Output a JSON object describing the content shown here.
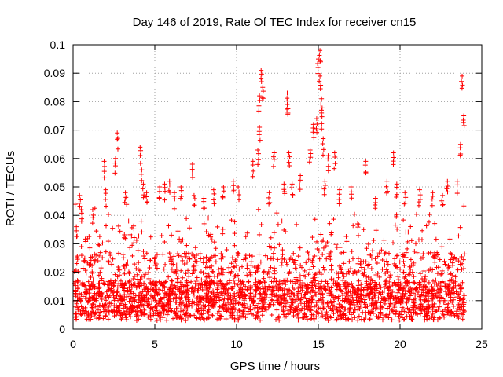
{
  "chart_data": {
    "type": "scatter",
    "title": "Day 146 of 2019, Rate Of TEC Index for receiver cn15",
    "xlabel": "GPS time / hours",
    "ylabel": "ROTI / TECUs",
    "xlim": [
      0,
      25
    ],
    "ylim": [
      0,
      0.1
    ],
    "xticks": [
      0,
      5,
      10,
      15,
      20,
      25
    ],
    "xtick_labels": [
      "0",
      "5",
      "10",
      "15",
      "20",
      "25"
    ],
    "yticks": [
      0,
      0.01,
      0.02,
      0.03,
      0.04,
      0.05,
      0.06,
      0.07,
      0.08,
      0.09,
      0.1
    ],
    "ytick_labels": [
      "0",
      "0.01",
      "0.02",
      "0.03",
      "0.04",
      "0.05",
      "0.06",
      "0.07",
      "0.08",
      "0.09",
      "0.1"
    ],
    "grid": true,
    "marker": "+",
    "series_color": "#ff0000",
    "series": [
      {
        "name": "ROTI",
        "x": [
          0.2,
          0.4,
          0.5,
          1.2,
          1.9,
          2.0,
          2.6,
          2.7,
          3.2,
          4.1,
          4.2,
          4.3,
          4.5,
          5.3,
          5.6,
          5.9,
          6.2,
          6.6,
          7.3,
          7.4,
          8.0,
          8.6,
          9.2,
          9.8,
          10.1,
          11.0,
          11.3,
          11.4,
          11.4,
          11.5,
          11.6,
          12.0,
          12.3,
          12.9,
          13.1,
          13.1,
          13.2,
          13.4,
          13.9,
          14.5,
          14.7,
          14.9,
          15.0,
          15.1,
          15.1,
          15.2,
          15.2,
          15.3,
          15.4,
          15.6,
          16.0,
          16.3,
          17.0,
          17.9,
          18.5,
          19.2,
          19.6,
          19.8,
          20.3,
          21.2,
          22.0,
          22.6,
          22.9,
          23.5,
          23.7,
          23.8,
          23.9
        ],
        "y": [
          0.036,
          0.047,
          0.042,
          0.042,
          0.059,
          0.049,
          0.06,
          0.069,
          0.048,
          0.064,
          0.056,
          0.051,
          0.048,
          0.05,
          0.051,
          0.052,
          0.048,
          0.05,
          0.058,
          0.047,
          0.046,
          0.049,
          0.05,
          0.052,
          0.05,
          0.059,
          0.063,
          0.071,
          0.082,
          0.091,
          0.085,
          0.048,
          0.062,
          0.051,
          0.079,
          0.083,
          0.062,
          0.051,
          0.054,
          0.063,
          0.072,
          0.074,
          0.095,
          0.098,
          0.089,
          0.076,
          0.081,
          0.067,
          0.052,
          0.061,
          0.062,
          0.049,
          0.05,
          0.059,
          0.046,
          0.052,
          0.062,
          0.051,
          0.048,
          0.049,
          0.048,
          0.047,
          0.052,
          0.052,
          0.065,
          0.089,
          0.075
        ]
      }
    ]
  }
}
